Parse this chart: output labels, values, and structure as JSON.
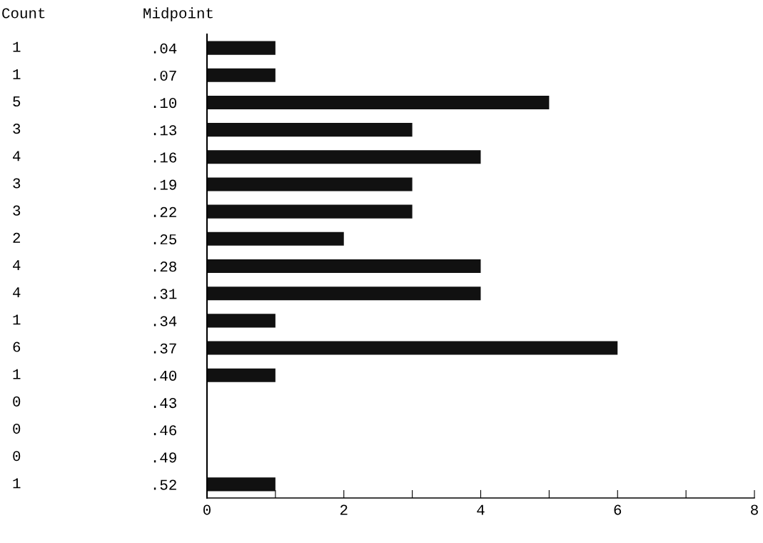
{
  "chart_data": {
    "type": "bar",
    "orientation": "horizontal",
    "ylabel": "Midpoint",
    "annotations": [
      "Count"
    ],
    "categories": [
      ".04",
      ".07",
      ".10",
      ".13",
      ".16",
      ".19",
      ".22",
      ".25",
      ".28",
      ".31",
      ".34",
      ".37",
      ".40",
      ".43",
      ".46",
      ".49",
      ".52"
    ],
    "values": [
      1,
      1,
      5,
      3,
      4,
      3,
      3,
      2,
      4,
      4,
      1,
      6,
      1,
      0,
      0,
      0,
      1
    ],
    "color": "#111111",
    "data_labels": true,
    "grid": false,
    "xlim": [
      0,
      8
    ],
    "xticks": [
      0,
      {
        "value": 1,
        "label": null
      },
      2,
      {
        "value": 3,
        "label": null
      },
      4,
      {
        "value": 5,
        "label": null
      },
      6,
      {
        "value": 7,
        "label": null
      },
      8
    ]
  }
}
